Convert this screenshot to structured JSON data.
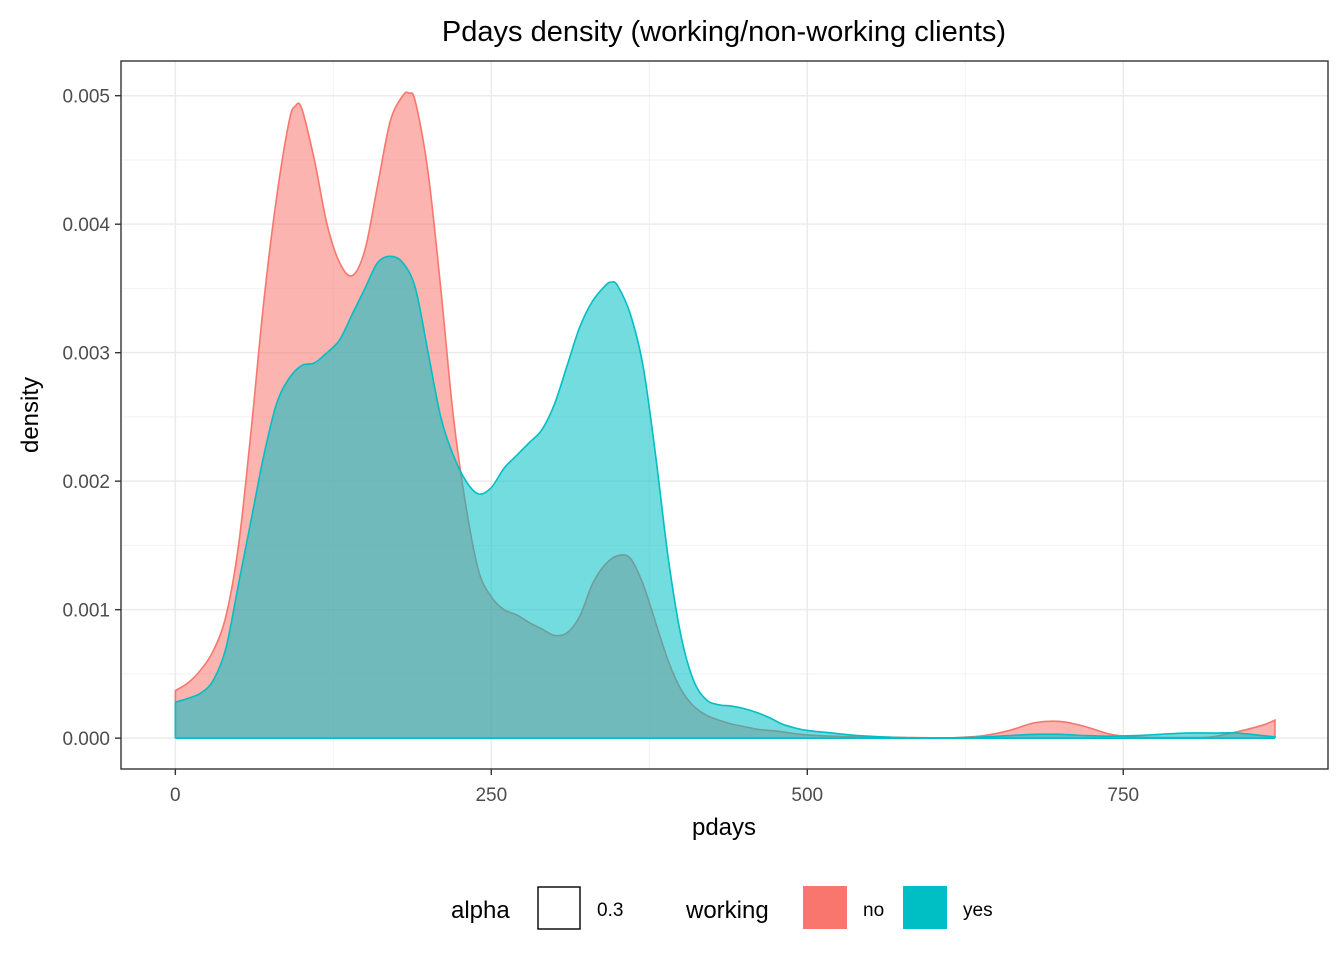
{
  "chart_data": {
    "type": "area",
    "title": "Pdays density (working/non-working clients)",
    "xlabel": "pdays",
    "ylabel": "density",
    "xlim": [
      -43,
      912
    ],
    "ylim": [
      -0.00024,
      0.00527
    ],
    "x_ticks": [
      0,
      250,
      500,
      750
    ],
    "x_tick_labels": [
      "0",
      "250",
      "500",
      "750"
    ],
    "y_ticks": [
      0,
      0.001,
      0.002,
      0.003,
      0.004,
      0.005
    ],
    "y_tick_labels": [
      "0.000",
      "0.001",
      "0.002",
      "0.003",
      "0.004",
      "0.005"
    ],
    "grid": true,
    "fill_alpha": 0.55,
    "legend": {
      "position": "bottom",
      "groups": [
        {
          "title": "alpha",
          "entries": [
            {
              "label": "0.3",
              "color": "none"
            }
          ]
        },
        {
          "title": "working",
          "entries": [
            {
              "label": "no",
              "color": "#F8766D"
            },
            {
              "label": "yes",
              "color": "#00BFC4"
            }
          ]
        }
      ]
    },
    "series": [
      {
        "name": "no",
        "color": "#F8766D",
        "x": [
          0,
          10,
          20,
          30,
          40,
          50,
          60,
          70,
          80,
          90,
          95,
          100,
          110,
          120,
          130,
          140,
          150,
          160,
          170,
          180,
          185,
          190,
          200,
          210,
          220,
          230,
          240,
          250,
          260,
          270,
          280,
          290,
          300,
          310,
          320,
          330,
          340,
          350,
          360,
          370,
          380,
          390,
          400,
          410,
          420,
          430,
          440,
          450,
          460,
          470,
          480,
          490,
          500,
          520,
          540,
          560,
          580,
          600,
          620,
          640,
          660,
          680,
          700,
          720,
          740,
          760,
          780,
          800,
          820,
          840,
          860,
          870
        ],
        "y": [
          0.00037,
          0.00043,
          0.00053,
          0.00068,
          0.00095,
          0.0015,
          0.0024,
          0.0034,
          0.0042,
          0.0048,
          0.00492,
          0.0049,
          0.0045,
          0.004,
          0.0037,
          0.0036,
          0.0038,
          0.0043,
          0.0048,
          0.005,
          0.00502,
          0.00495,
          0.0044,
          0.0035,
          0.0025,
          0.0018,
          0.0013,
          0.0011,
          0.001,
          0.00096,
          0.0009,
          0.00085,
          0.0008,
          0.00082,
          0.00095,
          0.0012,
          0.00135,
          0.00142,
          0.0014,
          0.0012,
          0.0009,
          0.0006,
          0.00038,
          0.00025,
          0.00018,
          0.00014,
          0.00011,
          9e-05,
          7e-05,
          6e-05,
          5e-05,
          3.5e-05,
          2.5e-05,
          1.5e-05,
          1e-05,
          8e-06,
          5e-06,
          3e-06,
          5e-06,
          2e-05,
          6e-05,
          0.00012,
          0.00013,
          9e-05,
          3e-05,
          1e-05,
          5e-06,
          5e-06,
          1e-05,
          5e-05,
          0.0001,
          0.00014
        ]
      },
      {
        "name": "yes",
        "color": "#00BFC4",
        "x": [
          0,
          10,
          20,
          30,
          40,
          50,
          60,
          70,
          80,
          90,
          100,
          110,
          120,
          130,
          140,
          150,
          160,
          170,
          180,
          190,
          200,
          210,
          220,
          230,
          240,
          250,
          260,
          270,
          280,
          290,
          300,
          310,
          320,
          330,
          340,
          345,
          350,
          360,
          370,
          380,
          390,
          400,
          410,
          420,
          430,
          440,
          450,
          460,
          470,
          480,
          490,
          500,
          520,
          540,
          560,
          580,
          600,
          620,
          640,
          660,
          680,
          700,
          720,
          740,
          760,
          780,
          800,
          820,
          840,
          860,
          870
        ],
        "y": [
          0.00028,
          0.00031,
          0.00035,
          0.00045,
          0.0007,
          0.0012,
          0.0017,
          0.0022,
          0.0026,
          0.0028,
          0.0029,
          0.00292,
          0.003,
          0.0031,
          0.0033,
          0.0035,
          0.0037,
          0.00375,
          0.0037,
          0.0035,
          0.003,
          0.0025,
          0.0022,
          0.002,
          0.0019,
          0.00195,
          0.0021,
          0.0022,
          0.0023,
          0.0024,
          0.0026,
          0.0029,
          0.0032,
          0.0034,
          0.00352,
          0.00355,
          0.00352,
          0.0033,
          0.0029,
          0.0022,
          0.0014,
          0.0008,
          0.00045,
          0.0003,
          0.00026,
          0.00025,
          0.00023,
          0.0002,
          0.00016,
          0.00011,
          8e-05,
          6e-05,
          4e-05,
          2e-05,
          1e-05,
          3e-06,
          2e-06,
          4e-06,
          1e-05,
          2e-05,
          3e-05,
          3e-05,
          2e-05,
          1.5e-05,
          2e-05,
          3e-05,
          4e-05,
          4e-05,
          4e-05,
          2e-05,
          1e-05
        ]
      }
    ]
  }
}
